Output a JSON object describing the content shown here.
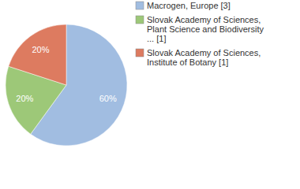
{
  "chart_data": {
    "type": "pie",
    "categories": [
      "Macrogen, Europe [3]",
      "Slovak Academy of Sciences, Plant Science and Biodiversity ... [1]",
      "Slovak Academy of Sciences, Institute of Botany [1]"
    ],
    "values": [
      60,
      20,
      20
    ],
    "value_labels": [
      "60%",
      "20%",
      "20%"
    ],
    "colors": [
      "#a1bde1",
      "#9dc878",
      "#dd7b60"
    ],
    "data_labels": true,
    "legend": "upper right"
  }
}
